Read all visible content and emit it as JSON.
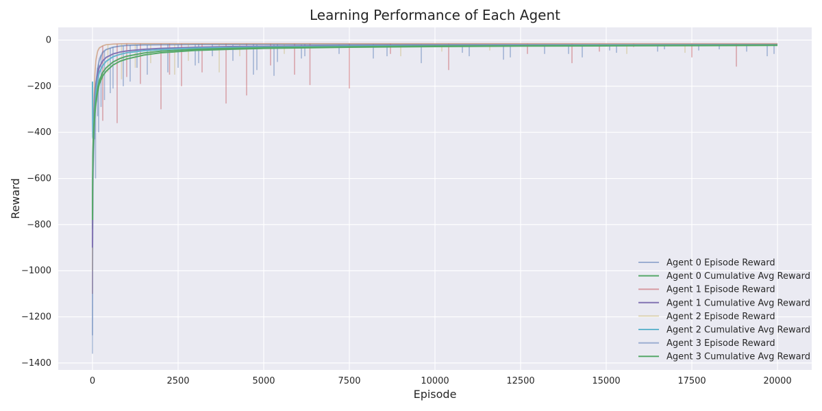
{
  "chart_data": {
    "type": "line",
    "title": "Learning Performance of Each Agent",
    "xlabel": "Episode",
    "ylabel": "Reward",
    "xlim": [
      -1000,
      21000
    ],
    "ylim": [
      -1430,
      55
    ],
    "xticks": [
      0,
      2500,
      5000,
      7500,
      10000,
      12500,
      15000,
      17500,
      20000
    ],
    "yticks": [
      0,
      -200,
      -400,
      -600,
      -800,
      -1000,
      -1200,
      -1400
    ],
    "xtick_labels": [
      "0",
      "2500",
      "5000",
      "7500",
      "10000",
      "12500",
      "15000",
      "17500",
      "20000"
    ],
    "ytick_labels": [
      "0",
      "−200",
      "−400",
      "−600",
      "−800",
      "−1000",
      "−1200",
      "−1400"
    ],
    "grid": true,
    "legend_position": "lower-right",
    "background_color": "#eaeaf2",
    "series": [
      {
        "name": "Agent 0 Episode Reward",
        "color": "#4c72b0",
        "opacity": 0.45,
        "kind": "episode",
        "x": [
          0,
          5,
          10,
          20,
          40,
          70,
          100,
          150,
          200,
          300,
          400,
          600,
          800,
          1000,
          1500,
          2000,
          3000,
          4000,
          5000,
          7500,
          10000,
          12500,
          15000,
          17500,
          20000
        ],
        "y": [
          -1280,
          -950,
          -700,
          -560,
          -450,
          -300,
          -180,
          -120,
          -80,
          -50,
          -40,
          -30,
          -25,
          -22,
          -20,
          -19,
          -18,
          -18,
          -18,
          -18,
          -18,
          -18,
          -18,
          -18,
          -18
        ],
        "spikes": [
          [
            60,
            -430
          ],
          [
            150,
            -330
          ],
          [
            250,
            -290
          ],
          [
            600,
            -210
          ],
          [
            1100,
            -180
          ],
          [
            1300,
            -120
          ],
          [
            2200,
            -140
          ],
          [
            3100,
            -100
          ],
          [
            3500,
            -70
          ],
          [
            4700,
            -150
          ],
          [
            5400,
            -95
          ],
          [
            6200,
            -70
          ],
          [
            8200,
            -80
          ],
          [
            9600,
            -100
          ],
          [
            11000,
            -70
          ],
          [
            12200,
            -75
          ],
          [
            13200,
            -60
          ],
          [
            14300,
            -75
          ],
          [
            15300,
            -55
          ],
          [
            16700,
            -40
          ],
          [
            17700,
            -45
          ],
          [
            19100,
            -50
          ],
          [
            19700,
            -70
          ]
        ]
      },
      {
        "name": "Agent 0 Cumulative Avg Reward",
        "color": "#55a868",
        "opacity": 1,
        "kind": "average",
        "x": [
          0,
          5,
          10,
          20,
          40,
          70,
          100,
          150,
          200,
          300,
          400,
          600,
          800,
          1000,
          1500,
          2000,
          3000,
          4000,
          5000,
          7500,
          10000,
          12500,
          15000,
          17500,
          20000
        ],
        "y": [
          -820,
          -650,
          -560,
          -480,
          -390,
          -320,
          -275,
          -225,
          -190,
          -155,
          -135,
          -108,
          -92,
          -82,
          -65,
          -55,
          -45,
          -40,
          -36,
          -31,
          -28,
          -26,
          -25,
          -24,
          -23
        ]
      },
      {
        "name": "Agent 1 Episode Reward",
        "color": "#c44e52",
        "opacity": 0.45,
        "kind": "episode",
        "x": [
          0,
          5,
          10,
          20,
          40,
          70,
          100,
          150,
          200,
          300,
          400,
          600,
          800,
          1000,
          1500,
          2000,
          3000,
          4000,
          5000,
          7500,
          10000,
          12500,
          15000,
          17500,
          20000
        ],
        "y": [
          -1100,
          -800,
          -600,
          -420,
          -280,
          -150,
          -90,
          -50,
          -35,
          -25,
          -20,
          -17,
          -16,
          -15,
          -15,
          -15,
          -15,
          -15,
          -15,
          -15,
          -15,
          -15,
          -15,
          -15,
          -15
        ],
        "spikes": [
          [
            300,
            -350
          ],
          [
            720,
            -360
          ],
          [
            1000,
            -160
          ],
          [
            1400,
            -190
          ],
          [
            2000,
            -300
          ],
          [
            2250,
            -150
          ],
          [
            2600,
            -200
          ],
          [
            3200,
            -140
          ],
          [
            3900,
            -275
          ],
          [
            4500,
            -240
          ],
          [
            5200,
            -110
          ],
          [
            5900,
            -150
          ],
          [
            6350,
            -195
          ],
          [
            7500,
            -210
          ],
          [
            8700,
            -60
          ],
          [
            10400,
            -130
          ],
          [
            12700,
            -60
          ],
          [
            14000,
            -100
          ],
          [
            14800,
            -50
          ],
          [
            15800,
            -30
          ],
          [
            17500,
            -75
          ],
          [
            18800,
            -115
          ]
        ]
      },
      {
        "name": "Agent 1 Cumulative Avg Reward",
        "color": "#8172b2",
        "opacity": 1,
        "kind": "average",
        "x": [
          0,
          5,
          10,
          20,
          40,
          70,
          100,
          150,
          200,
          300,
          400,
          600,
          800,
          1000,
          1500,
          2000,
          3000,
          4000,
          5000,
          7500,
          10000,
          12500,
          15000,
          17500,
          20000
        ],
        "y": [
          -900,
          -700,
          -560,
          -430,
          -330,
          -240,
          -190,
          -145,
          -118,
          -90,
          -75,
          -60,
          -52,
          -47,
          -40,
          -36,
          -31,
          -28,
          -27,
          -24,
          -22,
          -21,
          -21,
          -20,
          -20
        ]
      },
      {
        "name": "Agent 2 Episode Reward",
        "color": "#ccb974",
        "opacity": 0.45,
        "kind": "episode",
        "x": [
          0,
          5,
          10,
          20,
          40,
          70,
          100,
          150,
          200,
          300,
          400,
          600,
          800,
          1000,
          1500,
          2000,
          3000,
          4000,
          5000,
          7500,
          10000,
          12500,
          15000,
          17500,
          20000
        ],
        "y": [
          -1000,
          -750,
          -550,
          -400,
          -260,
          -140,
          -80,
          -45,
          -32,
          -24,
          -20,
          -18,
          -17,
          -16,
          -16,
          -16,
          -16,
          -16,
          -16,
          -16,
          -16,
          -16,
          -16,
          -16,
          -16
        ],
        "spikes": [
          [
            450,
            -140
          ],
          [
            850,
            -170
          ],
          [
            1250,
            -120
          ],
          [
            1700,
            -100
          ],
          [
            2400,
            -150
          ],
          [
            2800,
            -90
          ],
          [
            3700,
            -140
          ],
          [
            4300,
            -70
          ],
          [
            5600,
            -60
          ],
          [
            9000,
            -70
          ],
          [
            10200,
            -50
          ],
          [
            11600,
            -45
          ],
          [
            15600,
            -60
          ],
          [
            17300,
            -55
          ]
        ]
      },
      {
        "name": "Agent 2 Cumulative Avg Reward",
        "color": "#64b5cd",
        "opacity": 1,
        "kind": "average",
        "x": [
          0,
          5,
          10,
          20,
          40,
          70,
          100,
          150,
          200,
          300,
          400,
          600,
          800,
          1000,
          1500,
          2000,
          3000,
          4000,
          5000,
          7500,
          10000,
          12500,
          15000,
          17500,
          20000
        ],
        "y": [
          -180,
          -360,
          -420,
          -430,
          -360,
          -280,
          -225,
          -170,
          -140,
          -110,
          -92,
          -72,
          -62,
          -55,
          -46,
          -41,
          -35,
          -32,
          -30,
          -26,
          -24,
          -23,
          -22,
          -21,
          -21
        ]
      },
      {
        "name": "Agent 3 Episode Reward",
        "color": "#4c72b0",
        "opacity": 0.45,
        "kind": "episode",
        "x": [
          0,
          5,
          10,
          20,
          40,
          70,
          100,
          150,
          200,
          300,
          400,
          600,
          800,
          1000,
          1500,
          2000,
          3000,
          4000,
          5000,
          7500,
          10000,
          12500,
          15000,
          17500,
          20000
        ],
        "y": [
          -1360,
          -1000,
          -750,
          -600,
          -480,
          -320,
          -200,
          -130,
          -90,
          -55,
          -42,
          -32,
          -27,
          -24,
          -22,
          -21,
          -20,
          -20,
          -20,
          -20,
          -20,
          -20,
          -20,
          -20,
          -20
        ],
        "spikes": [
          [
            90,
            -600
          ],
          [
            180,
            -400
          ],
          [
            350,
            -260
          ],
          [
            520,
            -230
          ],
          [
            900,
            -200
          ],
          [
            1600,
            -150
          ],
          [
            2500,
            -120
          ],
          [
            3000,
            -110
          ],
          [
            4100,
            -90
          ],
          [
            4800,
            -130
          ],
          [
            5300,
            -155
          ],
          [
            6100,
            -80
          ],
          [
            7200,
            -60
          ],
          [
            8600,
            -70
          ],
          [
            10800,
            -55
          ],
          [
            12000,
            -85
          ],
          [
            13900,
            -60
          ],
          [
            15100,
            -45
          ],
          [
            16500,
            -50
          ],
          [
            18300,
            -40
          ],
          [
            19900,
            -60
          ]
        ]
      },
      {
        "name": "Agent 3 Cumulative Avg Reward",
        "color": "#55a868",
        "opacity": 1,
        "kind": "average",
        "x": [
          0,
          5,
          10,
          20,
          40,
          70,
          100,
          150,
          200,
          300,
          400,
          600,
          800,
          1000,
          1500,
          2000,
          3000,
          4000,
          5000,
          7500,
          10000,
          12500,
          15000,
          17500,
          20000
        ],
        "y": [
          -780,
          -620,
          -520,
          -440,
          -370,
          -300,
          -260,
          -210,
          -175,
          -140,
          -120,
          -95,
          -80,
          -70,
          -56,
          -48,
          -40,
          -36,
          -33,
          -29,
          -26,
          -25,
          -24,
          -23,
          -22
        ]
      }
    ]
  }
}
